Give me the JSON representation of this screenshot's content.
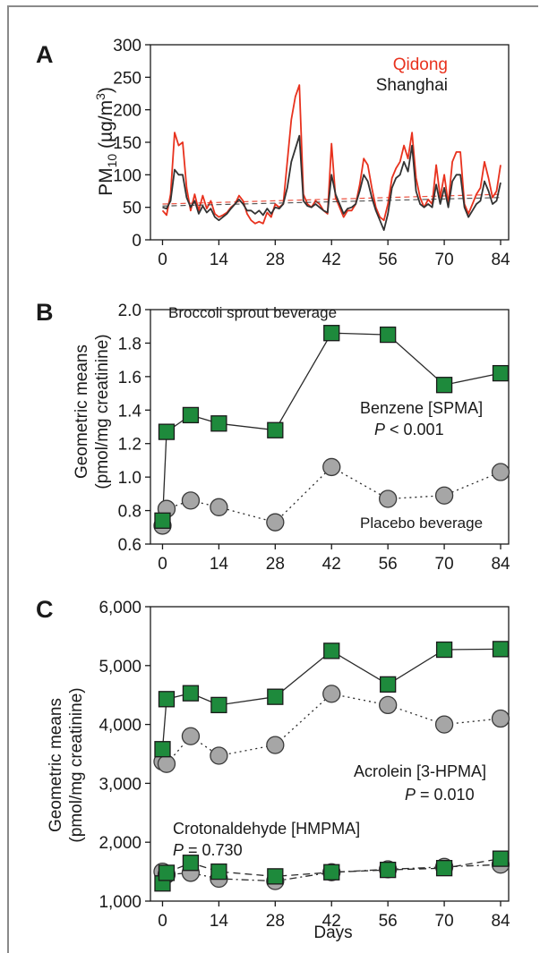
{
  "colors": {
    "qidong": "#e8321e",
    "shanghai": "#333333",
    "square_fill": "#1e8a3c",
    "circle_fill": "#a6a6a6",
    "axis": "#1a1a1a"
  },
  "chart_data": [
    {
      "type": "line",
      "panel_label": "A",
      "ylabel_main": "PM",
      "ylabel_sub": "10",
      "ylabel_rest": " (µg/m",
      "ylabel_sup": "3",
      "ylabel_close": ")",
      "ylim": [
        0,
        300
      ],
      "xlim": [
        -3,
        86
      ],
      "yticks": [
        0,
        50,
        100,
        150,
        200,
        250,
        300
      ],
      "xticks": [
        0,
        14,
        28,
        42,
        56,
        70,
        84
      ],
      "legend": [
        "Qidong",
        "Shanghai"
      ],
      "legend_position": "top-right",
      "series": [
        {
          "name": "Qidong",
          "x": [
            0,
            1,
            2,
            3,
            4,
            5,
            6,
            7,
            8,
            9,
            10,
            11,
            12,
            13,
            14,
            15,
            16,
            17,
            18,
            19,
            20,
            21,
            22,
            23,
            24,
            25,
            26,
            27,
            28,
            29,
            30,
            31,
            32,
            33,
            34,
            35,
            36,
            37,
            38,
            39,
            40,
            41,
            42,
            43,
            44,
            45,
            46,
            47,
            48,
            49,
            50,
            51,
            52,
            53,
            54,
            55,
            56,
            57,
            58,
            59,
            60,
            61,
            62,
            63,
            64,
            65,
            66,
            67,
            68,
            69,
            70,
            71,
            72,
            73,
            74,
            75,
            76,
            77,
            78,
            79,
            80,
            81,
            82,
            83,
            84
          ],
          "values": [
            45,
            38,
            70,
            165,
            145,
            150,
            80,
            45,
            70,
            45,
            68,
            48,
            60,
            40,
            35,
            38,
            42,
            50,
            55,
            68,
            60,
            40,
            30,
            25,
            28,
            25,
            42,
            35,
            55,
            50,
            55,
            120,
            185,
            220,
            238,
            70,
            55,
            50,
            60,
            55,
            45,
            40,
            148,
            65,
            50,
            35,
            45,
            45,
            55,
            85,
            125,
            115,
            80,
            50,
            35,
            30,
            55,
            95,
            110,
            120,
            145,
            125,
            165,
            95,
            65,
            50,
            62,
            55,
            115,
            65,
            100,
            55,
            120,
            135,
            135,
            55,
            40,
            55,
            70,
            80,
            120,
            95,
            65,
            75,
            115
          ],
          "trend": [
            55,
            70
          ]
        },
        {
          "name": "Shanghai",
          "x": [
            0,
            1,
            2,
            3,
            4,
            5,
            6,
            7,
            8,
            9,
            10,
            11,
            12,
            13,
            14,
            15,
            16,
            17,
            18,
            19,
            20,
            21,
            22,
            23,
            24,
            25,
            26,
            27,
            28,
            29,
            30,
            31,
            32,
            33,
            34,
            35,
            36,
            37,
            38,
            39,
            40,
            41,
            42,
            43,
            44,
            45,
            46,
            47,
            48,
            49,
            50,
            51,
            52,
            53,
            54,
            55,
            56,
            57,
            58,
            59,
            60,
            61,
            62,
            63,
            64,
            65,
            66,
            67,
            68,
            69,
            70,
            71,
            72,
            73,
            74,
            75,
            76,
            77,
            78,
            79,
            80,
            81,
            82,
            83,
            84
          ],
          "values": [
            50,
            48,
            60,
            108,
            100,
            100,
            65,
            50,
            60,
            40,
            52,
            42,
            48,
            35,
            30,
            35,
            40,
            48,
            55,
            62,
            55,
            45,
            45,
            40,
            45,
            38,
            48,
            40,
            50,
            48,
            55,
            80,
            120,
            140,
            160,
            60,
            52,
            50,
            55,
            50,
            45,
            42,
            100,
            70,
            55,
            40,
            48,
            50,
            55,
            75,
            100,
            90,
            65,
            45,
            30,
            15,
            40,
            80,
            95,
            100,
            120,
            105,
            145,
            75,
            55,
            50,
            55,
            50,
            85,
            55,
            80,
            50,
            90,
            100,
            100,
            50,
            35,
            45,
            55,
            60,
            90,
            75,
            55,
            60,
            88
          ],
          "trend": [
            52,
            65
          ]
        }
      ]
    },
    {
      "type": "line",
      "panel_label": "B",
      "ylabel_line1": "Geometric means",
      "ylabel_line2": "(pmol/mg creatinine)",
      "ylim": [
        0.6,
        2.0
      ],
      "xlim": [
        -3,
        86
      ],
      "yticks": [
        "0.6",
        "0.8",
        "1.0",
        "1.2",
        "1.4",
        "1.6",
        "1.8",
        "2.0"
      ],
      "xticks": [
        0,
        14,
        28,
        42,
        56,
        70,
        84
      ],
      "annotations": {
        "broccoli": "Broccoli sprout beverage",
        "benzene": "Benzene [SPMA]",
        "p_italic": "P",
        "p_value": " < 0.001",
        "placebo": "Placebo beverage"
      },
      "series": [
        {
          "name": "Broccoli sprout beverage",
          "marker": "square",
          "line": "solid",
          "x": [
            0,
            1,
            7,
            14,
            28,
            42,
            56,
            70,
            84
          ],
          "values": [
            0.74,
            1.27,
            1.37,
            1.32,
            1.28,
            1.86,
            1.85,
            1.55,
            1.62
          ]
        },
        {
          "name": "Placebo beverage",
          "marker": "circle",
          "line": "dotted",
          "x": [
            0,
            1,
            7,
            14,
            28,
            42,
            56,
            70,
            84
          ],
          "values": [
            0.71,
            0.81,
            0.86,
            0.82,
            0.73,
            1.06,
            0.87,
            0.89,
            1.03
          ]
        }
      ]
    },
    {
      "type": "line",
      "panel_label": "C",
      "ylabel_line1": "Geometric means",
      "ylabel_line2": "(pmol/mg creatinine)",
      "xlabel": "Days",
      "ylim": [
        1000,
        6000
      ],
      "xlim": [
        -3,
        86
      ],
      "yticks": [
        "1,000",
        "2,000",
        "3,000",
        "4,000",
        "5,000",
        "6,000"
      ],
      "xticks": [
        0,
        14,
        28,
        42,
        56,
        70,
        84
      ],
      "annotations": {
        "acrolein": "Acrolein [3-HPMA]",
        "p_acrolein_italic": "P",
        "p_acrolein_value": " = 0.010",
        "croton": "Crotonaldehyde [HMPMA]",
        "p_croton_italic": "P",
        "p_croton_value": " = 0.730"
      },
      "series": [
        {
          "marker": "square",
          "line": "solid",
          "x": [
            0,
            1,
            7,
            14,
            28,
            42,
            56,
            70,
            84
          ],
          "values": [
            3580,
            4430,
            4530,
            4330,
            4470,
            5250,
            4680,
            5270,
            5280
          ]
        },
        {
          "marker": "circle",
          "line": "dotted",
          "x": [
            0,
            1,
            7,
            14,
            28,
            42,
            56,
            70,
            84
          ],
          "values": [
            3370,
            3330,
            3800,
            3470,
            3650,
            4520,
            4330,
            4000,
            4100
          ]
        },
        {
          "marker": "square",
          "line": "dashed",
          "x": [
            0,
            1,
            7,
            14,
            28,
            42,
            56,
            70,
            84
          ],
          "values": [
            1300,
            1480,
            1650,
            1500,
            1420,
            1490,
            1530,
            1560,
            1720
          ]
        },
        {
          "marker": "circle",
          "line": "dashdot",
          "x": [
            0,
            1,
            7,
            14,
            28,
            42,
            56,
            70,
            84
          ],
          "values": [
            1500,
            1450,
            1480,
            1380,
            1340,
            1490,
            1540,
            1580,
            1620
          ]
        }
      ]
    }
  ]
}
